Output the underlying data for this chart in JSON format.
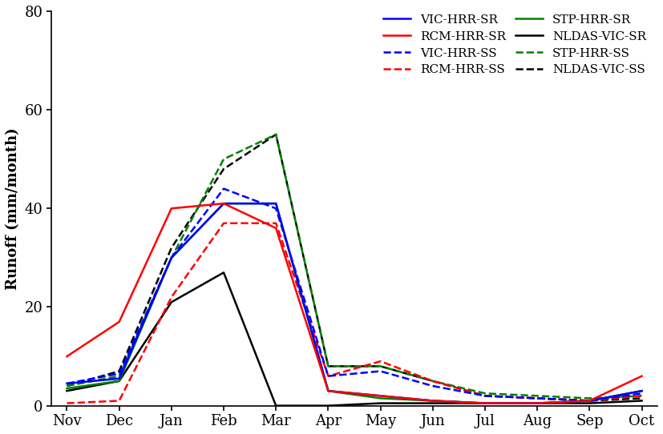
{
  "months": [
    "Nov",
    "Dec",
    "Jan",
    "Feb",
    "Mar",
    "Apr",
    "May",
    "Jun",
    "Jul",
    "Aug",
    "Sep",
    "Oct"
  ],
  "series": {
    "VIC-HRR-SR": [
      4.5,
      5.5,
      30,
      41,
      41,
      3,
      2,
      1,
      0.5,
      0.5,
      1,
      3
    ],
    "VIC-HRR-SS": [
      4.5,
      6.5,
      30,
      44,
      40,
      6,
      7,
      4,
      2,
      1.5,
      1,
      2.5
    ],
    "STP-HRR-SR": [
      3.5,
      5,
      30,
      41,
      41,
      3,
      1.5,
      1,
      0.5,
      0.5,
      1,
      3
    ],
    "STP-HRR-SS": [
      4,
      6,
      30,
      50,
      55,
      8,
      8,
      5,
      2.5,
      2,
      1.5,
      2
    ],
    "RCM-HRR-SR": [
      10,
      17,
      40,
      41,
      36,
      3,
      2,
      1,
      0.5,
      0.5,
      1,
      6
    ],
    "RCM-HRR-SS": [
      0.5,
      1,
      22,
      37,
      37,
      6,
      9,
      5,
      2,
      1.5,
      1,
      2
    ],
    "NLDAS-VIC-SR": [
      3,
      5,
      21,
      27,
      0,
      0,
      0.5,
      0.5,
      0.5,
      0.5,
      0.5,
      1
    ],
    "NLDAS-VIC-SS": [
      4,
      7,
      32,
      48,
      55,
      8,
      8,
      5,
      2,
      1.5,
      1,
      1.5
    ]
  },
  "styles": {
    "VIC-HRR-SR": {
      "color": "#0000ff",
      "linestyle": "-",
      "linewidth": 1.8
    },
    "VIC-HRR-SS": {
      "color": "#0000ff",
      "linestyle": "--",
      "linewidth": 1.8
    },
    "STP-HRR-SR": {
      "color": "#008000",
      "linestyle": "-",
      "linewidth": 1.8
    },
    "STP-HRR-SS": {
      "color": "#008000",
      "linestyle": "--",
      "linewidth": 1.8
    },
    "RCM-HRR-SR": {
      "color": "#ff0000",
      "linestyle": "-",
      "linewidth": 1.8
    },
    "RCM-HRR-SS": {
      "color": "#ff0000",
      "linestyle": "--",
      "linewidth": 1.8
    },
    "NLDAS-VIC-SR": {
      "color": "#000000",
      "linestyle": "-",
      "linewidth": 1.8
    },
    "NLDAS-VIC-SS": {
      "color": "#000000",
      "linestyle": "--",
      "linewidth": 1.8
    }
  },
  "ylabel": "Runoff (mm/month)",
  "ylim": [
    0,
    80
  ],
  "yticks": [
    0,
    20,
    40,
    60,
    80
  ],
  "background_color": "#ffffff",
  "legend_col1": [
    "VIC-HRR-SR",
    "VIC-HRR-SS",
    "STP-HRR-SR",
    "STP-HRR-SS"
  ],
  "legend_col2": [
    "RCM-HRR-SR",
    "RCM-HRR-SS",
    "NLDAS-VIC-SR",
    "NLDAS-VIC-SS"
  ]
}
